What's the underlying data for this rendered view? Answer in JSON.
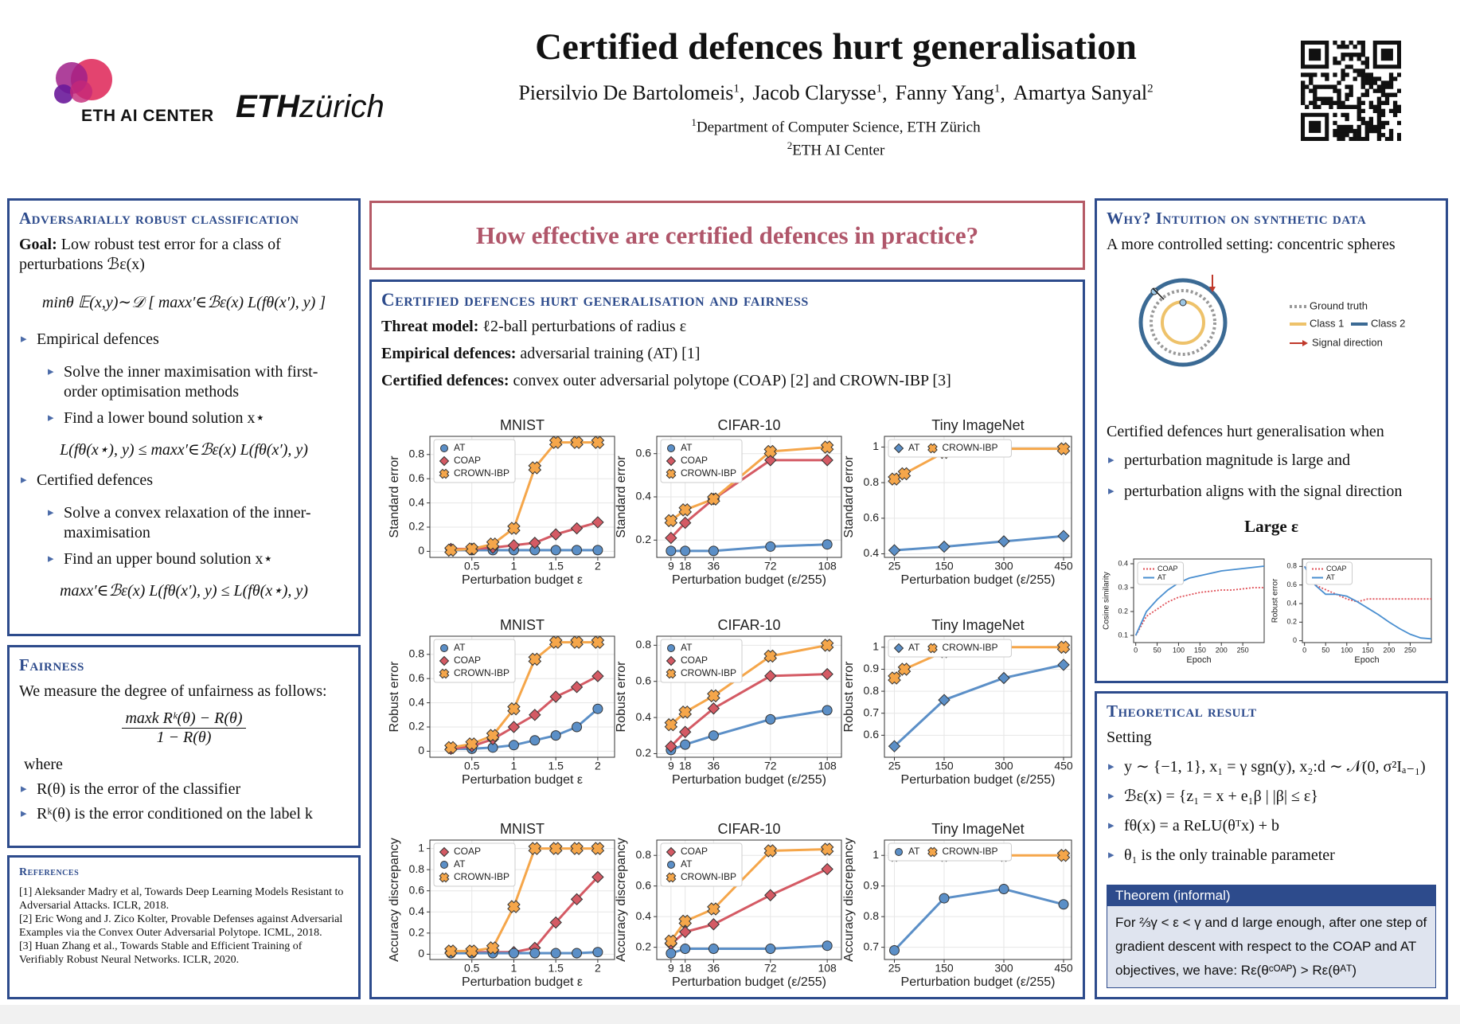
{
  "header": {
    "title": "Certified defences hurt generalisation",
    "authors": [
      {
        "name": "Piersilvio De Bartolomeis",
        "aff": "1"
      },
      {
        "name": "Jacob Clarysse",
        "aff": "1"
      },
      {
        "name": "Fanny Yang",
        "aff": "1"
      },
      {
        "name": "Amartya Sanyal",
        "aff": "2"
      }
    ],
    "separator": ",",
    "affiliations": [
      {
        "mark": "1",
        "name": "Department of Computer Science, ETH Zürich"
      },
      {
        "mark": "2",
        "name": "ETH AI Center"
      }
    ],
    "logo_ai": "ETH AI CENTER",
    "logo_eth": {
      "bold": "ETH",
      "light": "zürich"
    }
  },
  "adversarial": {
    "title": "Adversarially robust classification",
    "goal_label": "Goal:",
    "goal_text": "Low robust test error for a class of perturbations ℬε(x)",
    "objective": "minθ 𝔼(x,y)∼𝒟 [ maxx′∈ℬε(x) L(fθ(x′), y) ]",
    "empirical": {
      "title": "Empirical defences",
      "items": [
        "Solve the inner maximisation with first-order optimisation methods",
        "Find a lower bound solution x⋆"
      ],
      "bound": "L(fθ(x⋆), y) ≤ maxx′∈ℬε(x) L(fθ(x′), y)"
    },
    "certified": {
      "title": "Certified defences",
      "items": [
        "Solve a convex relaxation of the inner-maximisation",
        "Find an upper bound solution x⋆"
      ],
      "bound": "maxx′∈ℬε(x) L(fθ(x′), y) ≤ L(fθ(x⋆), y)"
    }
  },
  "fairness": {
    "title": "Fairness",
    "intro": "We measure the degree of unfairness as follows:",
    "numerator": "maxk Rᵏ(θ) − R(θ)",
    "denominator": "1 − R(θ)",
    "where": "where",
    "items": [
      "R(θ) is the error of the classifier",
      "Rᵏ(θ) is the error conditioned on the label k"
    ]
  },
  "references": {
    "title": "References",
    "items": [
      "[1] Aleksander Madry et al, Towards Deep Learning Models Resistant to Adversarial Attacks. ICLR, 2018.",
      "[2] Eric Wong and J. Zico Kolter, Provable Defenses against Adversarial Examples via the Convex Outer Adversarial Polytope. ICML, 2018.",
      "[3] Huan Zhang et al., Towards Stable and Efficient Training of Verifiably Robust Neural Networks. ICLR, 2020."
    ]
  },
  "question": "How effective are certified defences in practice?",
  "main": {
    "title": "Certified defences hurt generalisation and fairness",
    "lines": [
      {
        "label": "Threat model:",
        "text": "ℓ2-ball perturbations of radius ε"
      },
      {
        "label": "Empirical defences:",
        "text": "adversarial training (AT) [1]"
      },
      {
        "label": "Certified defences:",
        "text": "convex outer adversarial polytope (COAP) [2] and CROWN-IBP [3]"
      }
    ]
  },
  "why": {
    "title": "Why? Intuition on synthetic data",
    "intro": "A more controlled setting: concentric spheres",
    "diagram_legend": [
      "Ground truth",
      "Class 1",
      "Class 2",
      "Signal direction"
    ],
    "lead": "Certified defences hurt generalisation when",
    "items": [
      "perturbation magnitude is large and",
      "perturbation aligns with the signal direction"
    ],
    "subtitle": "Large ε"
  },
  "theory": {
    "title": "Theoretical result",
    "setting": "Setting",
    "items": [
      "y ∼ {−1, 1}, x₁ = γ sgn(y), x₂:d ∼ 𝒩(0, σ²Iₐ₋₁)",
      "ℬε(x) = {z₁ = x + e₁β | |β| ≤ ε}",
      "fθ(x) = a ReLU(θᵀx) + b",
      "θ₁ is the only trainable parameter"
    ],
    "theorem_title": "Theorem (informal)",
    "theorem_text": "For ⅔γ < ε < γ and d large enough, after one step of gradient descent with respect to the COAP and AT objectives, we have: Rε(θᶜᴼᴬᴾ) > Rε(θᴬᵀ)"
  },
  "chart_data": [
    {
      "type": "line",
      "title": "MNIST",
      "xlabel": "Perturbation budget ε",
      "ylabel": "Standard error",
      "xlim": [
        0,
        2.2
      ],
      "ylim": [
        -0.05,
        0.95
      ],
      "xticks": [
        0.5,
        1,
        1.5,
        2
      ],
      "yticks": [
        0,
        0.2,
        0.4,
        0.6,
        0.8
      ],
      "grid": true,
      "legend": "upper left",
      "legend_ncol": 1,
      "x": [
        0.25,
        0.5,
        0.75,
        1,
        1.25,
        1.5,
        1.75,
        2
      ],
      "series": [
        {
          "name": "AT",
          "color": "#5b8fc7",
          "marker": "circle",
          "values": [
            0.01,
            0.01,
            0.01,
            0.01,
            0.01,
            0.01,
            0.01,
            0.01
          ]
        },
        {
          "name": "COAP",
          "color": "#d45a64",
          "marker": "diamond",
          "values": [
            0.02,
            0.02,
            0.03,
            0.05,
            0.07,
            0.14,
            0.19,
            0.24
          ]
        },
        {
          "name": "CROWN-IBP",
          "color": "#f5a64a",
          "marker": "x",
          "values": [
            0.01,
            0.02,
            0.06,
            0.19,
            0.69,
            0.9,
            0.9,
            0.9
          ]
        }
      ]
    },
    {
      "type": "line",
      "title": "CIFAR-10",
      "xlabel": "Perturbation budget (ε/255)",
      "ylabel": "Standard error",
      "xlim": [
        0,
        117
      ],
      "ylim": [
        0.12,
        0.68
      ],
      "xticks": [
        9,
        18,
        36,
        72,
        108
      ],
      "yticks": [
        0.2,
        0.4,
        0.6
      ],
      "grid": true,
      "legend": "upper left",
      "legend_ncol": 1,
      "x": [
        9,
        18,
        36,
        72,
        108
      ],
      "series": [
        {
          "name": "AT",
          "color": "#5b8fc7",
          "marker": "circle",
          "values": [
            0.15,
            0.15,
            0.15,
            0.17,
            0.18
          ]
        },
        {
          "name": "COAP",
          "color": "#d45a64",
          "marker": "diamond",
          "values": [
            0.21,
            0.28,
            0.39,
            0.57,
            0.57
          ]
        },
        {
          "name": "CROWN-IBP",
          "color": "#f5a64a",
          "marker": "x",
          "values": [
            0.29,
            0.34,
            0.39,
            0.61,
            0.63
          ]
        }
      ]
    },
    {
      "type": "line",
      "title": "Tiny ImageNet",
      "xlabel": "Perturbation budget (ε/255)",
      "ylabel": "Standard error",
      "xlim": [
        0,
        470
      ],
      "ylim": [
        0.38,
        1.06
      ],
      "xticks": [
        25,
        150,
        300,
        450
      ],
      "yticks": [
        0.4,
        0.6,
        0.8,
        1
      ],
      "grid": true,
      "legend": "upper left",
      "legend_ncol": 2,
      "series": [
        {
          "name": "AT",
          "color": "#5b8fc7",
          "marker": "diamond",
          "x": [
            25,
            150,
            300,
            450
          ],
          "values": [
            0.42,
            0.44,
            0.47,
            0.5
          ]
        },
        {
          "name": "CROWN-IBP",
          "color": "#f5a64a",
          "marker": "x",
          "x": [
            25,
            50,
            150,
            300,
            450
          ],
          "values": [
            0.82,
            0.85,
            0.97,
            0.99,
            0.99
          ]
        }
      ]
    },
    {
      "type": "line",
      "title": "MNIST",
      "xlabel": "Perturbation budget ε",
      "ylabel": "Robust error",
      "xlim": [
        0,
        2.2
      ],
      "ylim": [
        -0.05,
        0.95
      ],
      "xticks": [
        0.5,
        1,
        1.5,
        2
      ],
      "yticks": [
        0,
        0.2,
        0.4,
        0.6,
        0.8
      ],
      "grid": true,
      "legend": "upper left",
      "legend_ncol": 1,
      "x": [
        0.25,
        0.5,
        0.75,
        1,
        1.25,
        1.5,
        1.75,
        2
      ],
      "series": [
        {
          "name": "AT",
          "color": "#5b8fc7",
          "marker": "circle",
          "values": [
            0.02,
            0.02,
            0.03,
            0.05,
            0.09,
            0.13,
            0.2,
            0.35
          ]
        },
        {
          "name": "COAP",
          "color": "#d45a64",
          "marker": "diamond",
          "values": [
            0.02,
            0.04,
            0.1,
            0.2,
            0.3,
            0.45,
            0.53,
            0.62
          ]
        },
        {
          "name": "CROWN-IBP",
          "color": "#f5a64a",
          "marker": "x",
          "values": [
            0.03,
            0.06,
            0.13,
            0.35,
            0.76,
            0.9,
            0.9,
            0.9
          ]
        }
      ]
    },
    {
      "type": "line",
      "title": "CIFAR-10",
      "xlabel": "Perturbation budget (ε/255)",
      "ylabel": "Robust error",
      "xlim": [
        0,
        117
      ],
      "ylim": [
        0.18,
        0.85
      ],
      "xticks": [
        9,
        18,
        36,
        72,
        108
      ],
      "yticks": [
        0.2,
        0.4,
        0.6,
        0.8
      ],
      "grid": true,
      "legend": "upper left",
      "legend_ncol": 1,
      "x": [
        9,
        18,
        36,
        72,
        108
      ],
      "series": [
        {
          "name": "AT",
          "color": "#5b8fc7",
          "marker": "circle",
          "values": [
            0.22,
            0.25,
            0.3,
            0.39,
            0.44
          ]
        },
        {
          "name": "COAP",
          "color": "#d45a64",
          "marker": "diamond",
          "values": [
            0.24,
            0.32,
            0.45,
            0.63,
            0.64
          ]
        },
        {
          "name": "CROWN-IBP",
          "color": "#f5a64a",
          "marker": "x",
          "values": [
            0.36,
            0.43,
            0.52,
            0.74,
            0.8
          ]
        }
      ]
    },
    {
      "type": "line",
      "title": "Tiny ImageNet",
      "xlabel": "Perturbation budget (ε/255)",
      "ylabel": "Robust error",
      "xlim": [
        0,
        470
      ],
      "ylim": [
        0.5,
        1.05
      ],
      "xticks": [
        25,
        150,
        300,
        450
      ],
      "yticks": [
        0.6,
        0.7,
        0.8,
        0.9,
        1
      ],
      "grid": true,
      "legend": "upper left",
      "legend_ncol": 2,
      "series": [
        {
          "name": "AT",
          "color": "#5b8fc7",
          "marker": "diamond",
          "x": [
            25,
            150,
            300,
            450
          ],
          "values": [
            0.55,
            0.76,
            0.86,
            0.92
          ]
        },
        {
          "name": "CROWN-IBP",
          "color": "#f5a64a",
          "marker": "x",
          "x": [
            25,
            50,
            150,
            300,
            450
          ],
          "values": [
            0.86,
            0.9,
            0.98,
            1,
            1
          ]
        }
      ]
    },
    {
      "type": "line",
      "title": "MNIST",
      "xlabel": "Perturbation budget ε",
      "ylabel": "Accuracy discrepancy",
      "xlim": [
        0,
        2.2
      ],
      "ylim": [
        -0.05,
        1.08
      ],
      "xticks": [
        0.5,
        1,
        1.5,
        2
      ],
      "yticks": [
        0,
        0.2,
        0.4,
        0.6,
        0.8,
        1
      ],
      "grid": true,
      "legend": "upper left",
      "legend_ncol": 1,
      "x": [
        0.25,
        0.5,
        0.75,
        1,
        1.25,
        1.5,
        1.75,
        2
      ],
      "series": [
        {
          "name": "COAP",
          "color": "#d45a64",
          "marker": "diamond",
          "values": [
            0.02,
            0.02,
            0.02,
            0.02,
            0.06,
            0.3,
            0.52,
            0.73
          ]
        },
        {
          "name": "AT",
          "color": "#5b8fc7",
          "marker": "circle",
          "values": [
            0.01,
            0.01,
            0.01,
            0.01,
            0.01,
            0.01,
            0.01,
            0.02
          ]
        },
        {
          "name": "CROWN-IBP",
          "color": "#f5a64a",
          "marker": "x",
          "values": [
            0.03,
            0.03,
            0.06,
            0.45,
            1,
            1,
            1,
            1
          ]
        }
      ]
    },
    {
      "type": "line",
      "title": "CIFAR-10",
      "xlabel": "Perturbation budget (ε/255)",
      "ylabel": "Accuracy discrepancy",
      "xlim": [
        0,
        117
      ],
      "ylim": [
        0.12,
        0.9
      ],
      "xticks": [
        9,
        18,
        36,
        72,
        108
      ],
      "yticks": [
        0.2,
        0.4,
        0.6,
        0.8
      ],
      "grid": true,
      "legend": "upper left",
      "legend_ncol": 1,
      "x": [
        9,
        18,
        36,
        72,
        108
      ],
      "series": [
        {
          "name": "COAP",
          "color": "#d45a64",
          "marker": "diamond",
          "values": [
            0.22,
            0.3,
            0.35,
            0.54,
            0.71
          ]
        },
        {
          "name": "AT",
          "color": "#5b8fc7",
          "marker": "circle",
          "values": [
            0.16,
            0.19,
            0.19,
            0.19,
            0.21
          ]
        },
        {
          "name": "CROWN-IBP",
          "color": "#f5a64a",
          "marker": "x",
          "values": [
            0.24,
            0.37,
            0.45,
            0.83,
            0.84
          ]
        }
      ]
    },
    {
      "type": "line",
      "title": "Tiny ImageNet",
      "xlabel": "Perturbation budget (ε/255)",
      "ylabel": "Accuracy discrepancy",
      "xlim": [
        0,
        470
      ],
      "ylim": [
        0.66,
        1.05
      ],
      "xticks": [
        25,
        150,
        300,
        450
      ],
      "yticks": [
        0.7,
        0.8,
        0.9,
        1
      ],
      "grid": true,
      "legend": "upper left",
      "legend_ncol": 2,
      "series": [
        {
          "name": "AT",
          "color": "#5b8fc7",
          "marker": "circle",
          "x": [
            25,
            150,
            300,
            450
          ],
          "values": [
            0.69,
            0.86,
            0.89,
            0.84
          ]
        },
        {
          "name": "CROWN-IBP",
          "color": "#f5a64a",
          "marker": "x",
          "x": [
            25,
            150,
            300,
            450
          ],
          "values": [
            1,
            1,
            1,
            1
          ]
        }
      ]
    },
    {
      "type": "line",
      "xlabel": "Epoch",
      "ylabel": "Cosine similarity",
      "xlim": [
        -5,
        300
      ],
      "ylim": [
        0.07,
        0.42
      ],
      "xticks": [
        0,
        50,
        100,
        150,
        200,
        250
      ],
      "yticks": [
        0.1,
        0.2,
        0.3,
        0.4
      ],
      "grid": false,
      "legend": "upper left",
      "legend_ncol": 1,
      "x": [
        0,
        25,
        50,
        75,
        100,
        125,
        150,
        175,
        200,
        225,
        250,
        275,
        300
      ],
      "series": [
        {
          "name": "COAP",
          "color": "#e0525a",
          "linestyle": "dotted",
          "values": [
            0.1,
            0.18,
            0.21,
            0.24,
            0.26,
            0.27,
            0.28,
            0.285,
            0.29,
            0.29,
            0.295,
            0.3,
            0.3
          ]
        },
        {
          "name": "AT",
          "color": "#4a8fd0",
          "values": [
            0.1,
            0.2,
            0.25,
            0.29,
            0.32,
            0.34,
            0.35,
            0.36,
            0.37,
            0.375,
            0.38,
            0.385,
            0.39
          ]
        }
      ]
    },
    {
      "type": "line",
      "xlabel": "Epoch",
      "ylabel": "Robust error",
      "xlim": [
        -5,
        300
      ],
      "ylim": [
        -0.02,
        0.88
      ],
      "xticks": [
        0,
        50,
        100,
        150,
        200,
        250
      ],
      "yticks": [
        0,
        0.2,
        0.4,
        0.6,
        0.8
      ],
      "grid": false,
      "legend": "upper left",
      "legend_ncol": 1,
      "x": [
        0,
        25,
        50,
        75,
        100,
        125,
        150,
        175,
        200,
        225,
        250,
        275,
        300
      ],
      "series": [
        {
          "name": "COAP",
          "color": "#e0525a",
          "linestyle": "dotted",
          "values": [
            0.8,
            0.6,
            0.55,
            0.5,
            0.45,
            0.42,
            0.45,
            0.45,
            0.45,
            0.45,
            0.45,
            0.45,
            0.45
          ]
        },
        {
          "name": "AT",
          "color": "#4a8fd0",
          "values": [
            0.8,
            0.6,
            0.5,
            0.5,
            0.48,
            0.42,
            0.35,
            0.28,
            0.2,
            0.13,
            0.07,
            0.03,
            0.02
          ]
        }
      ]
    }
  ]
}
